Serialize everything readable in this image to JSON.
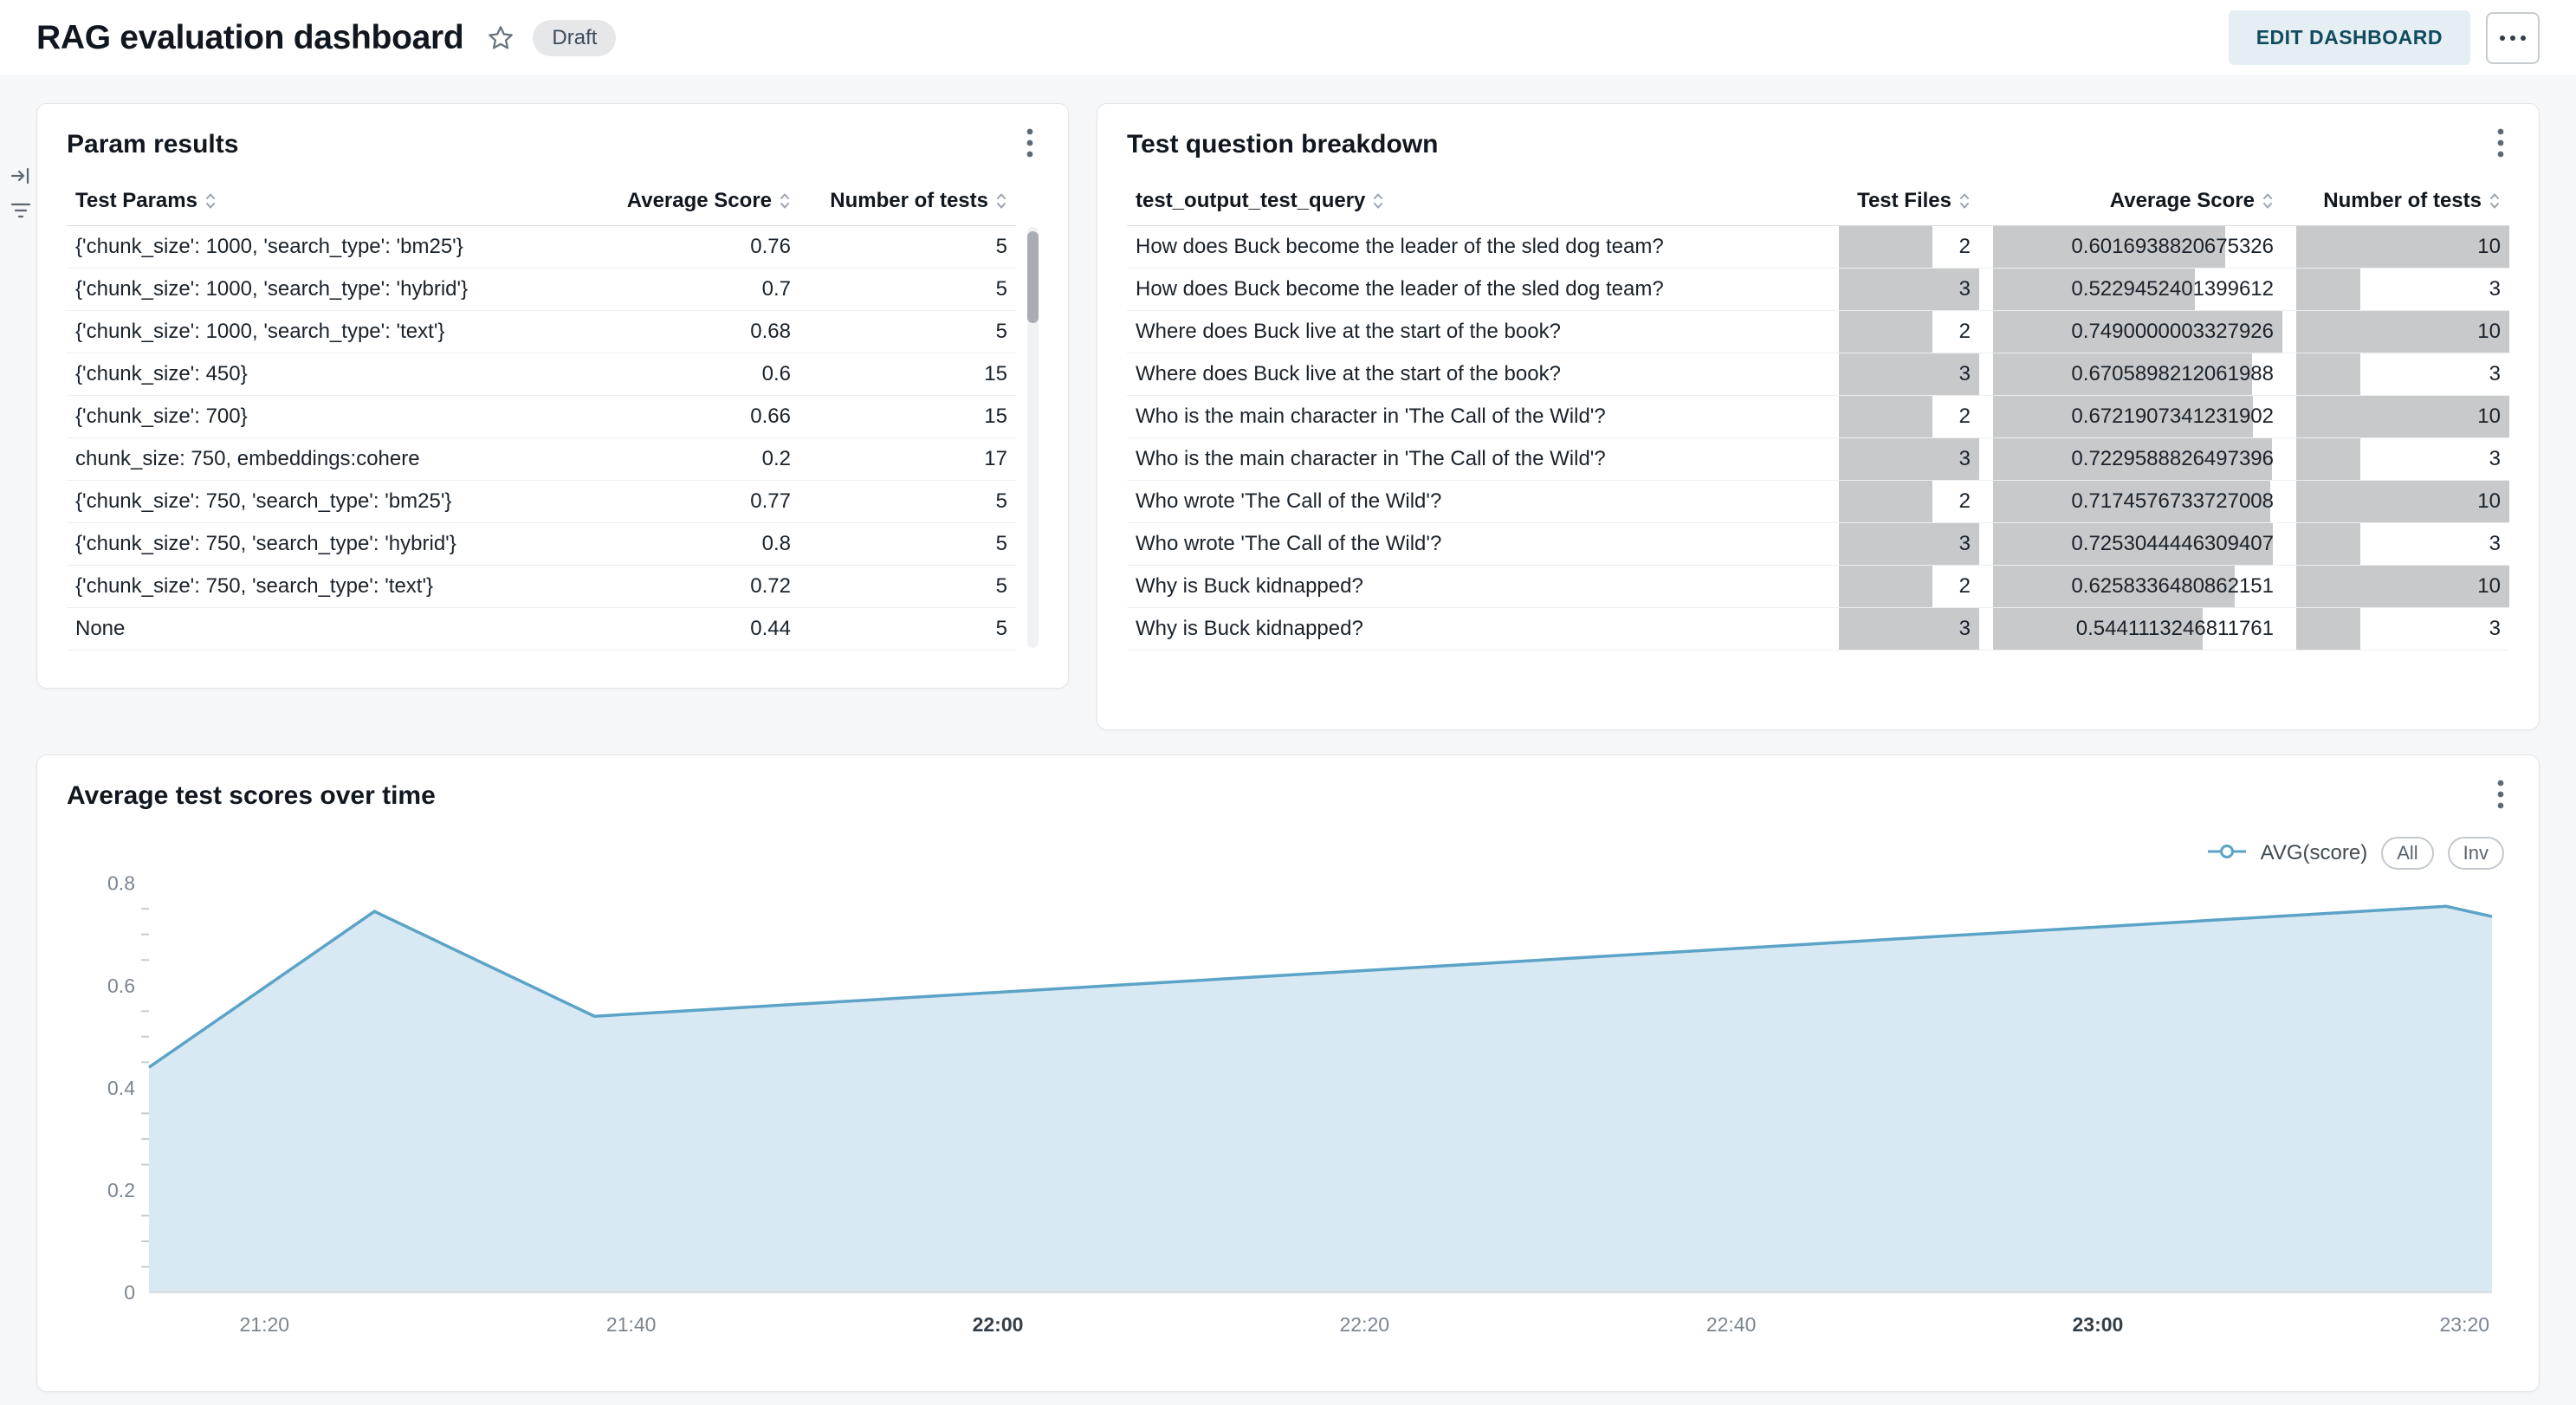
{
  "page": {
    "title": "RAG evaluation dashboard",
    "status_badge": "Draft",
    "edit_button_label": "EDIT DASHBOARD"
  },
  "colors": {
    "accent_line": "#5ba3c7",
    "area_fill": "#d8e9f3",
    "data_bar_gray": "#c7c9cb",
    "edit_button_bg": "#e5eef2",
    "edit_button_text": "#114b5f",
    "page_background": "#f6f7f9"
  },
  "icons": {
    "favorite": "star-outline",
    "more_options": "horizontal-ellipsis",
    "card_menu": "vertical-kebab",
    "sort": "up-down-carets",
    "collapse_panel": "arrow-to-bar",
    "filters": "filter-lines",
    "legend_marker": "line-with-circle"
  },
  "param_results": {
    "title": "Param results",
    "columns": [
      "Test Params",
      "Average Score",
      "Number of tests"
    ],
    "rows": [
      [
        "{'chunk_size': 1000, 'search_type': 'bm25'}",
        "0.76",
        "5"
      ],
      [
        "{'chunk_size': 1000, 'search_type': 'hybrid'}",
        "0.7",
        "5"
      ],
      [
        "{'chunk_size': 1000, 'search_type': 'text'}",
        "0.68",
        "5"
      ],
      [
        "{'chunk_size': 450}",
        "0.6",
        "15"
      ],
      [
        "{'chunk_size': 700}",
        "0.66",
        "15"
      ],
      [
        "chunk_size: 750, embeddings:cohere",
        "0.2",
        "17"
      ],
      [
        "{'chunk_size': 750, 'search_type': 'bm25'}",
        "0.77",
        "5"
      ],
      [
        "{'chunk_size': 750, 'search_type': 'hybrid'}",
        "0.8",
        "5"
      ],
      [
        "{'chunk_size': 750, 'search_type': 'text'}",
        "0.72",
        "5"
      ],
      [
        "None",
        "0.44",
        "5"
      ]
    ]
  },
  "question_breakdown": {
    "title": "Test question breakdown",
    "columns": [
      "test_output_test_query",
      "Test Files",
      "Average Score",
      "Number of tests"
    ],
    "bar_color": "#c7c9cb",
    "max": {
      "files": 3,
      "avg": 0.7490000003327926,
      "tests": 10
    },
    "rows": [
      {
        "query": "How does Buck become the leader of the sled dog team?",
        "files": "2",
        "avg": "0.6016938820675326",
        "tests": "10"
      },
      {
        "query": "How does Buck become the leader of the sled dog team?",
        "files": "3",
        "avg": "0.5229452401399612",
        "tests": "3"
      },
      {
        "query": "Where does Buck live at the start of the book?",
        "files": "2",
        "avg": "0.7490000003327926",
        "tests": "10"
      },
      {
        "query": "Where does Buck live at the start of the book?",
        "files": "3",
        "avg": "0.6705898212061988",
        "tests": "3"
      },
      {
        "query": "Who is the main character in 'The Call of the Wild'?",
        "files": "2",
        "avg": "0.6721907341231902",
        "tests": "10"
      },
      {
        "query": "Who is the main character in 'The Call of the Wild'?",
        "files": "3",
        "avg": "0.7229588826497396",
        "tests": "3"
      },
      {
        "query": "Who wrote 'The Call of the Wild'?",
        "files": "2",
        "avg": "0.7174576733727008",
        "tests": "10"
      },
      {
        "query": "Who wrote 'The Call of the Wild'?",
        "files": "3",
        "avg": "0.7253044446309407",
        "tests": "3"
      },
      {
        "query": "Why is Buck kidnapped?",
        "files": "2",
        "avg": "0.6258336480862151",
        "tests": "10"
      },
      {
        "query": "Why is Buck kidnapped?",
        "files": "3",
        "avg": "0.5441113246811761",
        "tests": "3"
      }
    ]
  },
  "chart_data": {
    "type": "area",
    "title": "Average test scores over time",
    "legend": {
      "series_label": "AVG(score)",
      "buttons": [
        "All",
        "Inv"
      ]
    },
    "x_domain_minutes": [
      -6.3,
      121.5
    ],
    "x_ticks": [
      {
        "m": 0,
        "label": "21:20",
        "bold": false
      },
      {
        "m": 20,
        "label": "21:40",
        "bold": false
      },
      {
        "m": 40,
        "label": "22:00",
        "bold": true
      },
      {
        "m": 60,
        "label": "22:20",
        "bold": false
      },
      {
        "m": 80,
        "label": "22:40",
        "bold": false
      },
      {
        "m": 100,
        "label": "23:00",
        "bold": true
      },
      {
        "m": 120,
        "label": "23:20",
        "bold": false
      }
    ],
    "y_max": 0.83,
    "y_ticks": [
      {
        "v": 0,
        "label": "0"
      },
      {
        "v": 0.2,
        "label": "0.2"
      },
      {
        "v": 0.4,
        "label": "0.4"
      },
      {
        "v": 0.6,
        "label": "0.6"
      },
      {
        "v": 0.8,
        "label": "0.8"
      }
    ],
    "series": [
      {
        "name": "AVG(score)",
        "points": [
          [
            -6.3,
            0.44
          ],
          [
            6,
            0.745
          ],
          [
            18,
            0.54
          ],
          [
            119,
            0.755
          ],
          [
            121.5,
            0.735
          ]
        ]
      }
    ],
    "colors": {
      "line": "#5ba3c7",
      "fill": "#d8e9f3"
    },
    "grid": false,
    "legend_position": "top-right"
  }
}
